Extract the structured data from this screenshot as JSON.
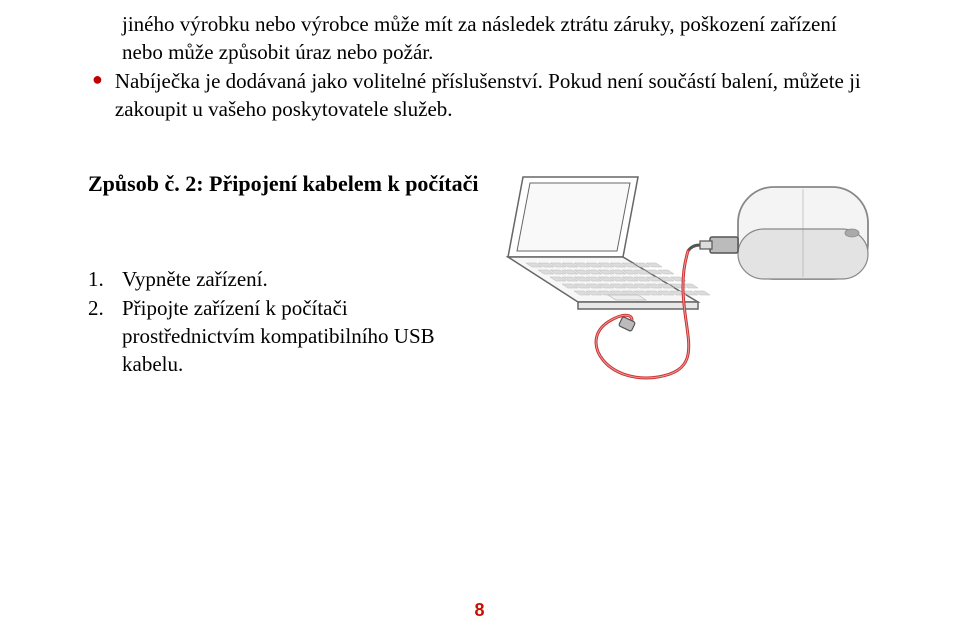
{
  "bullets": [
    "jiného výrobku nebo výrobce může mít za následek ztrátu záruky, poškození zařízení nebo může způsobit úraz nebo požár.",
    "Nabíječka je dodávaná jako volitelné příslušenství. Pokud není součástí balení, můžete ji zakoupit u vašeho poskytovatele služeb."
  ],
  "heading": "Způsob č. 2: Připojení kabelem k počítači",
  "steps": [
    {
      "num": "1.",
      "text": "Vypněte zařízení."
    },
    {
      "num": "2.",
      "text": "Připojte zařízení k počítači prostřednictvím kompatibilního USB kabelu."
    }
  ],
  "page_number": "8",
  "illustration": {
    "bg": "#ffffff",
    "laptop_stroke": "#666666",
    "laptop_key_fill": "#dcdcdc",
    "cable_color": "#cc3333",
    "cable_width": 3,
    "plug_stroke": "#555555",
    "plug_fill": "#bbbbbb",
    "device_stroke": "#888888",
    "device_fill_light": "#f4f4f4",
    "device_fill_dark": "#e3e3e3",
    "device_button": "#aaaaaa"
  }
}
